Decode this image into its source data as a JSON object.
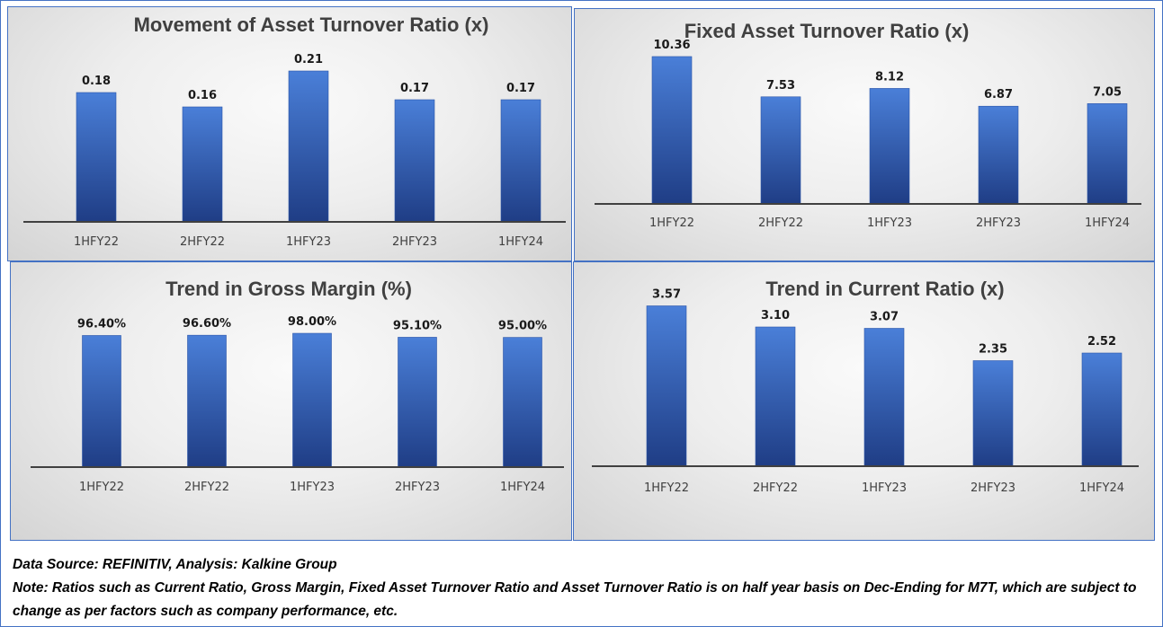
{
  "chart_data": [
    {
      "type": "bar",
      "title": "Movement of Asset Turnover Ratio (x)",
      "categories": [
        "1HFY22",
        "2HFY22",
        "1HFY23",
        "2HFY23",
        "1HFY24"
      ],
      "values": [
        0.18,
        0.16,
        0.21,
        0.17,
        0.17
      ],
      "labels": [
        "0.18",
        "0.16",
        "0.21",
        "0.17",
        "0.17"
      ],
      "ylim": [
        0,
        0.25
      ],
      "grid": false,
      "xlabel": "",
      "ylabel": ""
    },
    {
      "type": "bar",
      "title": "Fixed Asset Turnover Ratio (x)",
      "categories": [
        "1HFY22",
        "2HFY22",
        "1HFY23",
        "2HFY23",
        "1HFY24"
      ],
      "values": [
        10.36,
        7.53,
        8.12,
        6.87,
        7.05
      ],
      "labels": [
        "10.36",
        "7.53",
        "8.12",
        "6.87",
        "7.05"
      ],
      "ylim": [
        0,
        12
      ],
      "grid": false,
      "xlabel": "",
      "ylabel": ""
    },
    {
      "type": "bar",
      "title": "Trend in Gross Margin (%)",
      "categories": [
        "1HFY22",
        "2HFY22",
        "1HFY23",
        "2HFY23",
        "1HFY24"
      ],
      "values": [
        96.4,
        96.6,
        98.0,
        95.1,
        95.0
      ],
      "labels": [
        "96.40%",
        "96.60%",
        "98.00%",
        "95.10%",
        "95.00%"
      ],
      "ylim": [
        0,
        100
      ],
      "grid": false,
      "xlabel": "",
      "ylabel": ""
    },
    {
      "type": "bar",
      "title": "Trend in Current Ratio (x)",
      "categories": [
        "1HFY22",
        "2HFY22",
        "1HFY23",
        "2HFY23",
        "1HFY24"
      ],
      "values": [
        3.57,
        3.1,
        3.07,
        2.35,
        2.52
      ],
      "labels": [
        "3.57",
        "3.10",
        "3.07",
        "2.35",
        "2.52"
      ],
      "ylim": [
        0,
        4
      ],
      "grid": false,
      "xlabel": "",
      "ylabel": ""
    }
  ],
  "colors": {
    "bar_top": "#4a7fd8",
    "bar_bottom": "#1f3d85",
    "panel_border": "#4472c4",
    "axis": "#404040"
  },
  "footer": {
    "source": "Data Source: REFINITIV, Analysis: Kalkine Group",
    "note": "Note: Ratios such as Current Ratio, Gross Margin, Fixed Asset Turnover Ratio and Asset Turnover Ratio is on half year basis on Dec-Ending for M7T, which are subject to change as per factors such as company performance, etc."
  }
}
